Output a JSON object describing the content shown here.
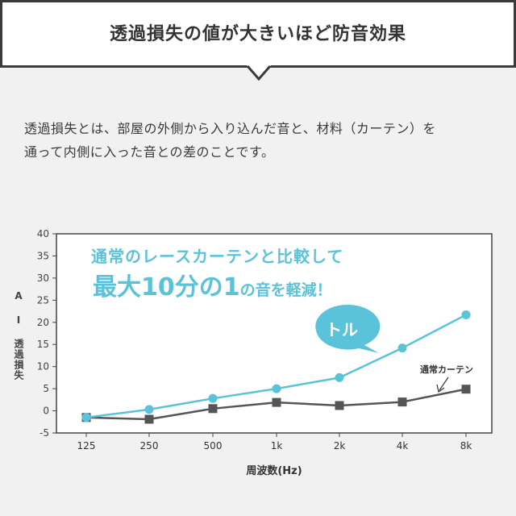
{
  "header": {
    "title": "透過損失の値が大きいほど防音効果"
  },
  "description": [
    "透過損失とは、部屋の外側から入り込んだ音と、材料（カーテン）を",
    "通って内側に入った音との差のことです。"
  ],
  "chart_data": {
    "type": "line",
    "categories": [
      "125",
      "250",
      "500",
      "1k",
      "2k",
      "4k",
      "8k"
    ],
    "series": [
      {
        "name": "トル",
        "color": "#5bc3d9",
        "marker": "circle",
        "values": [
          -1.5,
          0.3,
          2.8,
          5.0,
          7.5,
          14.2,
          21.7
        ]
      },
      {
        "name": "通常カーテン",
        "color": "#555555",
        "marker": "square",
        "values": [
          -1.5,
          -1.9,
          0.5,
          1.9,
          1.2,
          2.0,
          4.9
        ]
      }
    ],
    "ylim": [
      -5,
      40
    ],
    "yticks": [
      -5,
      0,
      5,
      10,
      15,
      20,
      25,
      30,
      35,
      40
    ],
    "xlabel": "周波数(Hz)",
    "ylabel": "A I 透過損失",
    "grid": false,
    "annotations": {
      "line1": "通常のレースカーテンと比較して",
      "line2_a": "最大",
      "line2_b": "10分の1",
      "line2_c": "の音を軽減！"
    }
  },
  "colors": {
    "accent": "#5bc3d9",
    "dark": "#555555",
    "frame": "#3a3a3a"
  }
}
